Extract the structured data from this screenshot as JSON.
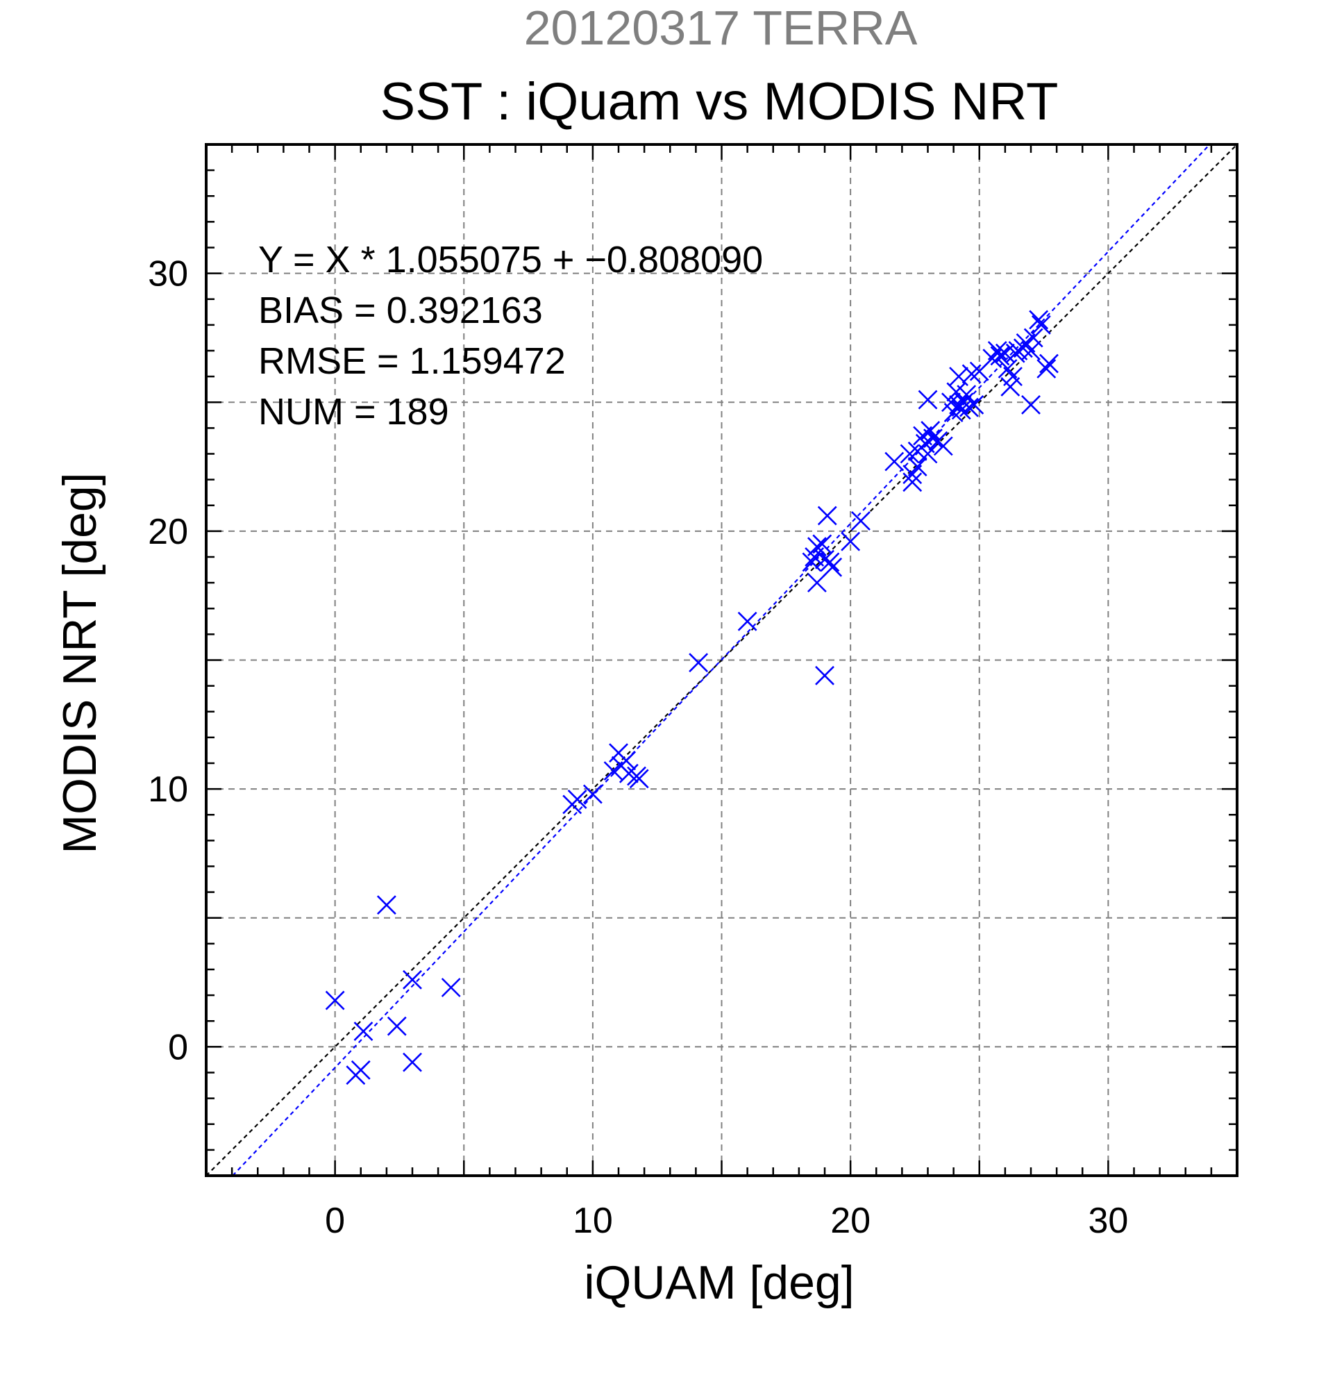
{
  "suptitle": "20120317 TERRA",
  "chart_data": {
    "type": "scatter",
    "title": "SST : iQuam vs MODIS NRT",
    "xlabel": "iQUAM [deg]",
    "ylabel": "MODIS NRT [deg]",
    "xlim": [
      -5,
      35
    ],
    "ylim": [
      -5,
      35
    ],
    "xticks": [
      0,
      10,
      20,
      30
    ],
    "yticks": [
      0,
      10,
      20,
      30
    ],
    "x_ticklabels": [
      "0",
      "10",
      "20",
      "30"
    ],
    "y_ticklabels": [
      "0",
      "10",
      "20",
      "30"
    ],
    "grid_step": 5,
    "minor_tick_step": 1,
    "grid": true,
    "stats": [
      "Y = X * 1.055075 + −0.808090",
      "BIAS = 0.392163",
      "RMSE = 1.159472",
      "NUM = 189"
    ],
    "regression": {
      "slope": 1.055075,
      "intercept": -0.80809,
      "color": "#0000ff"
    },
    "identity_line": {
      "slope": 1,
      "intercept": 0,
      "color": "#000000"
    },
    "marker_color": "#0000ff",
    "marker": "x",
    "series": [
      {
        "points": [
          [
            0.0,
            1.8
          ],
          [
            0.8,
            -1.1
          ],
          [
            1.0,
            -0.9
          ],
          [
            1.1,
            0.6
          ],
          [
            2.0,
            5.5
          ],
          [
            2.4,
            0.8
          ],
          [
            3.0,
            2.6
          ],
          [
            3.0,
            -0.6
          ],
          [
            4.5,
            2.3
          ],
          [
            9.2,
            9.4
          ],
          [
            9.4,
            9.6
          ],
          [
            10.0,
            9.8
          ],
          [
            10.8,
            10.7
          ],
          [
            11.0,
            11.4
          ],
          [
            11.1,
            10.9
          ],
          [
            11.3,
            11.1
          ],
          [
            11.4,
            10.6
          ],
          [
            11.7,
            10.5
          ],
          [
            11.8,
            10.4
          ],
          [
            14.1,
            14.9
          ],
          [
            16.0,
            16.5
          ],
          [
            18.5,
            18.8
          ],
          [
            18.6,
            19.0
          ],
          [
            18.7,
            18.0
          ],
          [
            18.7,
            19.4
          ],
          [
            18.9,
            19.5
          ],
          [
            19.0,
            14.4
          ],
          [
            19.0,
            18.9
          ],
          [
            19.1,
            20.6
          ],
          [
            19.2,
            18.8
          ],
          [
            19.3,
            18.6
          ],
          [
            20.0,
            19.6
          ],
          [
            20.4,
            20.4
          ],
          [
            21.7,
            22.7
          ],
          [
            22.3,
            23.0
          ],
          [
            22.4,
            22.2
          ],
          [
            22.4,
            21.9
          ],
          [
            22.6,
            23.1
          ],
          [
            22.6,
            22.5
          ],
          [
            22.8,
            23.7
          ],
          [
            22.9,
            23.4
          ],
          [
            23.0,
            25.1
          ],
          [
            23.0,
            23.0
          ],
          [
            23.1,
            23.9
          ],
          [
            23.2,
            23.6
          ],
          [
            23.4,
            23.5
          ],
          [
            23.6,
            23.3
          ],
          [
            23.9,
            25.0
          ],
          [
            24.0,
            24.6
          ],
          [
            24.1,
            25.4
          ],
          [
            24.2,
            26.0
          ],
          [
            24.2,
            24.9
          ],
          [
            24.3,
            24.7
          ],
          [
            24.4,
            25.0
          ],
          [
            24.5,
            25.3
          ],
          [
            24.6,
            24.8
          ],
          [
            24.7,
            26.1
          ],
          [
            24.8,
            24.9
          ],
          [
            25.0,
            26.2
          ],
          [
            25.5,
            26.7
          ],
          [
            25.7,
            27.0
          ],
          [
            25.8,
            26.8
          ],
          [
            26.0,
            26.9
          ],
          [
            26.1,
            26.3
          ],
          [
            26.2,
            25.6
          ],
          [
            26.3,
            26.0
          ],
          [
            26.4,
            26.9
          ],
          [
            26.5,
            27.0
          ],
          [
            26.7,
            27.1
          ],
          [
            26.8,
            27.3
          ],
          [
            27.0,
            24.9
          ],
          [
            27.0,
            27.0
          ],
          [
            27.1,
            27.5
          ],
          [
            27.3,
            28.2
          ],
          [
            27.4,
            28.0
          ],
          [
            27.6,
            26.3
          ],
          [
            27.7,
            26.5
          ]
        ]
      }
    ]
  }
}
